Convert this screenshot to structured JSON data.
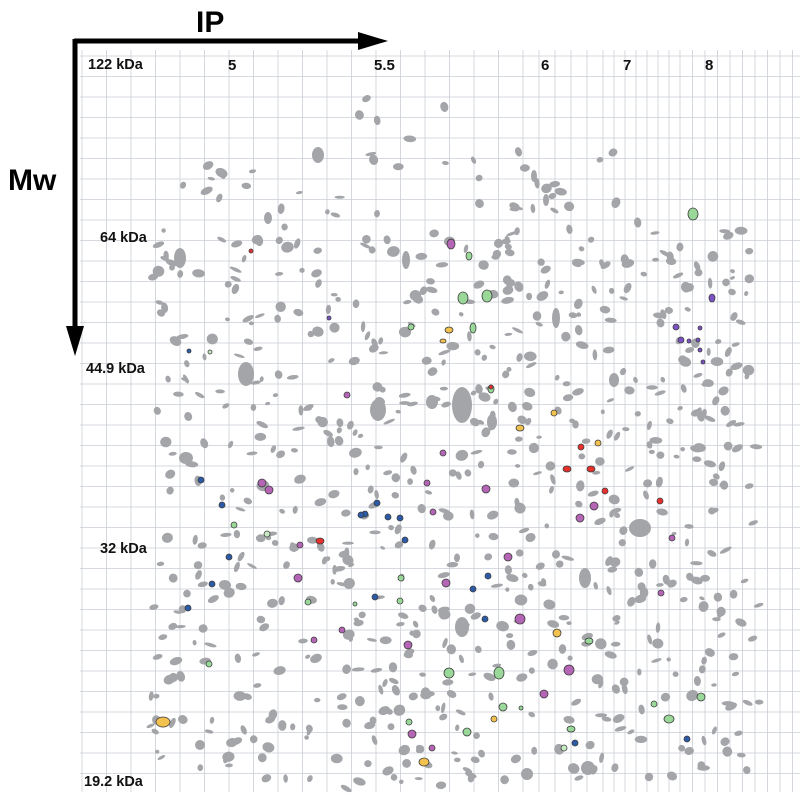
{
  "axes": {
    "x_title": "IP",
    "y_title": "Mw",
    "ip_ticks": [
      {
        "label": "5",
        "value": 5
      },
      {
        "label": "5.5",
        "value": 5.5
      },
      {
        "label": "6",
        "value": 6
      },
      {
        "label": "7",
        "value": 7
      },
      {
        "label": "8",
        "value": 8
      }
    ],
    "mw_ticks": [
      {
        "label": "122 kDa",
        "value": 122
      },
      {
        "label": "64 kDa",
        "value": 64
      },
      {
        "label": "44.9 kDa",
        "value": 44.9
      },
      {
        "label": "32 kDa",
        "value": 32
      },
      {
        "label": "19.2 kDa",
        "value": 19.2
      }
    ]
  },
  "colors": {
    "background": "#ffffff",
    "grid": "#c9ced6",
    "axis_arrow": "#000000",
    "spot_gray": "#a3a5a8",
    "spot_green": "#9ad89a",
    "spot_magenta": "#b565b5",
    "spot_blue": "#2c5aa6",
    "spot_red": "#e8302c",
    "spot_yellow": "#f2c14e",
    "spot_purple": "#7b52c4",
    "spot_light_green": "#c8ebc4"
  }
}
